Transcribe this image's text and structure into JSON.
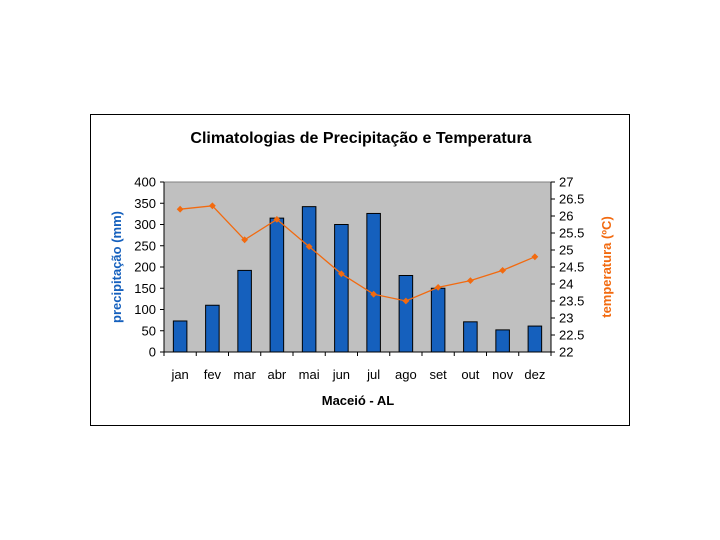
{
  "chart_data": {
    "type": "bar+line",
    "title": "Climatologias de Precipitação e Temperatura",
    "xlabel": "Maceió - AL",
    "ylabel_left": "precipitação (mm)",
    "ylabel_right": "temperatura (ºC)",
    "categories": [
      "jan",
      "fev",
      "mar",
      "abr",
      "mai",
      "jun",
      "jul",
      "ago",
      "set",
      "out",
      "nov",
      "dez"
    ],
    "ylim_left": [
      0,
      400
    ],
    "yticks_left": [
      "0",
      "50",
      "100",
      "150",
      "200",
      "250",
      "300",
      "350",
      "400"
    ],
    "ylim_right": [
      22,
      27
    ],
    "yticks_right": [
      "22",
      "22.5",
      "23",
      "23.5",
      "24",
      "24.5",
      "25",
      "25.5",
      "26",
      "26.5",
      "27"
    ],
    "series": [
      {
        "name": "precipitação",
        "type": "bar",
        "axis": "left",
        "color": "#1560BD",
        "values": [
          73,
          110,
          192,
          315,
          342,
          300,
          326,
          180,
          150,
          71,
          52,
          61
        ]
      },
      {
        "name": "temperatura",
        "type": "line",
        "axis": "right",
        "color": "#F26A0F",
        "values": [
          26.2,
          26.3,
          25.3,
          25.9,
          25.1,
          24.3,
          23.7,
          23.5,
          23.9,
          24.1,
          24.4,
          24.8
        ]
      }
    ],
    "plot_background": "#C0C0C0",
    "axis_left_label_color": "#1560BD",
    "axis_right_label_color": "#F26A0F"
  }
}
